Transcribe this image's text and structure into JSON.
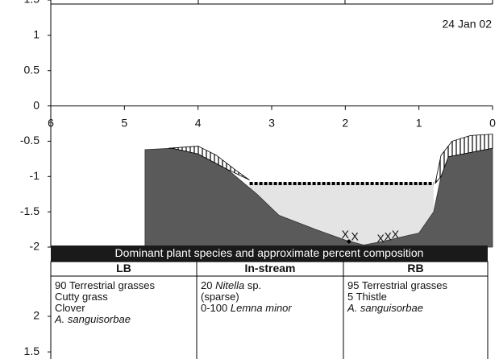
{
  "chart_data": {
    "type": "cross_section",
    "annotation": "24 Jan 02",
    "xlim": [
      6,
      0
    ],
    "xticks": [
      6,
      5,
      4,
      3,
      2,
      1,
      0
    ],
    "ylim": [
      -2,
      1.5
    ],
    "yticks": [
      1.5,
      1,
      0.5,
      0,
      -0.5,
      -1,
      -1.5,
      -2
    ],
    "ground": {
      "x": [
        4.72,
        4.35,
        4.0,
        3.6,
        3.2,
        2.9,
        2.4,
        2.0,
        1.75,
        1.5,
        1.0,
        0.8,
        0.7,
        0.6,
        0
      ],
      "y": [
        -0.62,
        -0.6,
        -0.68,
        -0.9,
        -1.25,
        -1.55,
        -1.75,
        -1.9,
        -1.97,
        -1.92,
        -1.8,
        -1.5,
        -1.0,
        -0.72,
        -0.6
      ],
      "color": "#5a5a5a"
    },
    "water": {
      "x": [
        3.3,
        0.8
      ],
      "level": -1.1,
      "color": "#e4e4e4"
    },
    "vegetation": [
      {
        "x": [
          4.4,
          4.0,
          3.75,
          3.5,
          3.3,
          3.6,
          4.0,
          4.35
        ],
        "y": [
          -0.6,
          -0.57,
          -0.7,
          -0.9,
          -1.05,
          -0.9,
          -0.68,
          -0.6
        ]
      },
      {
        "x": [
          0.78,
          0.7,
          0.55,
          0.3,
          0,
          0,
          0.6,
          0.7
        ],
        "y": [
          -1.1,
          -0.7,
          -0.5,
          -0.42,
          -0.4,
          -0.6,
          -0.72,
          -1.0
        ]
      }
    ],
    "marker_label": "X",
    "markers": {
      "x": [
        2.0,
        1.87,
        1.52,
        1.42,
        1.32
      ],
      "y": [
        -1.83,
        -1.86,
        -1.89,
        -1.86,
        -1.83
      ]
    },
    "point": {
      "x": 1.95,
      "y": -1.92
    },
    "table": {
      "title": "Dominant plant species and approximate percent composition",
      "columns": [
        "LB",
        "In-stream",
        "RB"
      ],
      "cells": [
        [
          [
            {
              "text": "90 Terrestrial grasses"
            }
          ],
          [
            {
              "text": "Cutty grass"
            }
          ],
          [
            {
              "text": "Clover"
            }
          ],
          [
            {
              "text": "A. sanguisorbae",
              "italic": true
            }
          ]
        ],
        [
          [
            {
              "text": "20 "
            },
            {
              "text": "Nitella",
              "italic": true
            },
            {
              "text": " sp."
            }
          ],
          [
            {
              "text": "(sparse)"
            }
          ],
          [
            {
              "text": "0-100 "
            },
            {
              "text": "Lemna minor",
              "italic": true
            }
          ]
        ],
        [
          [
            {
              "text": "95 Terrestrial grasses"
            }
          ],
          [
            {
              "text": "5 Thistle"
            }
          ],
          [
            {
              "text": "A. sanguisorbae",
              "italic": true
            }
          ]
        ]
      ]
    },
    "lower_axis": {
      "ylim": [
        1.4,
        2.6
      ],
      "yticks": [
        2,
        1.5
      ]
    }
  }
}
